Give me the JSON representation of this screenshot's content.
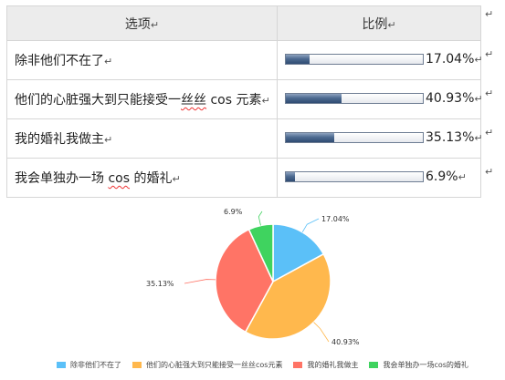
{
  "table": {
    "header_option": "选项",
    "header_ratio": "比例",
    "rows": [
      {
        "label": "除非他们不在了",
        "percent_text": "17.04%",
        "value": 17.04,
        "squiggle": ""
      },
      {
        "label": "他们的心脏强大到只能接受一丝丝 cos 元素",
        "percent_text": "40.93%",
        "value": 40.93,
        "squiggle": "丝丝"
      },
      {
        "label": "我的婚礼我做主",
        "percent_text": "35.13%",
        "value": 35.13,
        "squiggle": ""
      },
      {
        "label": "我会单独办一场 cos 的婚礼",
        "percent_text": "6.9%",
        "value": 6.9,
        "squiggle": "cos"
      }
    ]
  },
  "chart_data": {
    "type": "pie",
    "categories": [
      "除非他们不在了",
      "他们的心脏强大到只能接受一丝丝cos元素",
      "我的婚礼我做主",
      "我会单独办一场cos的婚礼"
    ],
    "values": [
      17.04,
      40.93,
      35.13,
      6.9
    ],
    "labels": [
      "17.04%",
      "40.93%",
      "35.13%",
      "6.9%"
    ],
    "colors": [
      "#5bc0f8",
      "#ffb84d",
      "#ff7466",
      "#3fd35f"
    ],
    "legend_position": "bottom"
  }
}
